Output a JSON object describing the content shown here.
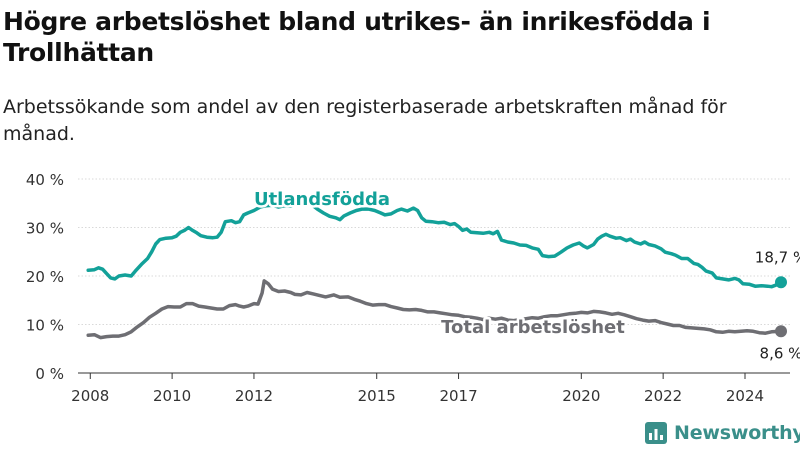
{
  "title": "Högre arbetslöshet bland utrikes- än inrikesfödda i Trollhättan",
  "subtitle": "Arbetssökande som andel av den registerbaserade arbetskraften månad för månad.",
  "brand": {
    "name": "Newsworthy",
    "icon": "newsworthy-logo-icon",
    "color": "#3a8f8a"
  },
  "chart_data": {
    "type": "line",
    "xlim": [
      2007.7,
      2025.1
    ],
    "ylim": [
      0,
      40
    ],
    "x_ticks": [
      {
        "value": 2008,
        "label": "2008"
      },
      {
        "value": 2010,
        "label": "2010"
      },
      {
        "value": 2012,
        "label": "2012"
      },
      {
        "value": 2015,
        "label": "2015"
      },
      {
        "value": 2017,
        "label": "2017"
      },
      {
        "value": 2020,
        "label": "2020"
      },
      {
        "value": 2022,
        "label": "2022"
      },
      {
        "value": 2024,
        "label": "2024"
      }
    ],
    "y_ticks": [
      {
        "value": 0,
        "label": "0 %"
      },
      {
        "value": 10,
        "label": "10 %"
      },
      {
        "value": 20,
        "label": "20 %"
      },
      {
        "value": 30,
        "label": "30 %"
      },
      {
        "value": 40,
        "label": "40 %"
      }
    ],
    "grid": true,
    "series": [
      {
        "name": "Utlandsfödda",
        "color": "#13a199",
        "end_label": "18,7 %",
        "points": [
          [
            2007.95,
            21.2
          ],
          [
            2008.1,
            21.3
          ],
          [
            2008.2,
            21.7
          ],
          [
            2008.3,
            21.4
          ],
          [
            2008.4,
            20.5
          ],
          [
            2008.5,
            19.6
          ],
          [
            2008.6,
            19.4
          ],
          [
            2008.7,
            20.0
          ],
          [
            2008.85,
            20.2
          ],
          [
            2009.0,
            20.0
          ],
          [
            2009.1,
            21.0
          ],
          [
            2009.25,
            22.4
          ],
          [
            2009.4,
            23.6
          ],
          [
            2009.5,
            25.0
          ],
          [
            2009.6,
            26.6
          ],
          [
            2009.7,
            27.5
          ],
          [
            2009.85,
            27.8
          ],
          [
            2010.0,
            27.9
          ],
          [
            2010.1,
            28.2
          ],
          [
            2010.2,
            29.0
          ],
          [
            2010.3,
            29.4
          ],
          [
            2010.4,
            30.0
          ],
          [
            2010.5,
            29.4
          ],
          [
            2010.6,
            28.9
          ],
          [
            2010.7,
            28.3
          ],
          [
            2010.85,
            28.0
          ],
          [
            2011.0,
            27.9
          ],
          [
            2011.1,
            28.0
          ],
          [
            2011.2,
            29.0
          ],
          [
            2011.3,
            31.2
          ],
          [
            2011.45,
            31.4
          ],
          [
            2011.55,
            31.0
          ],
          [
            2011.65,
            31.2
          ],
          [
            2011.75,
            32.6
          ],
          [
            2011.85,
            33.0
          ],
          [
            2012.0,
            33.5
          ],
          [
            2012.15,
            34.2
          ],
          [
            2012.3,
            34.5
          ],
          [
            2012.45,
            34.6
          ],
          [
            2012.6,
            34.2
          ],
          [
            2012.75,
            34.5
          ],
          [
            2012.9,
            34.4
          ],
          [
            2013.1,
            34.9
          ],
          [
            2013.25,
            35.2
          ],
          [
            2013.4,
            34.8
          ],
          [
            2013.55,
            33.8
          ],
          [
            2013.7,
            33.0
          ],
          [
            2013.85,
            32.3
          ],
          [
            2014.0,
            32.0
          ],
          [
            2014.1,
            31.6
          ],
          [
            2014.2,
            32.4
          ],
          [
            2014.35,
            33.0
          ],
          [
            2014.5,
            33.5
          ],
          [
            2014.65,
            33.8
          ],
          [
            2014.8,
            33.8
          ],
          [
            2014.95,
            33.5
          ],
          [
            2015.1,
            33.0
          ],
          [
            2015.2,
            32.6
          ],
          [
            2015.35,
            32.8
          ],
          [
            2015.5,
            33.5
          ],
          [
            2015.6,
            33.8
          ],
          [
            2015.75,
            33.4
          ],
          [
            2015.9,
            34.0
          ],
          [
            2016.0,
            33.5
          ],
          [
            2016.1,
            32.0
          ],
          [
            2016.2,
            31.3
          ],
          [
            2016.35,
            31.2
          ],
          [
            2016.5,
            31.0
          ],
          [
            2016.65,
            31.1
          ],
          [
            2016.8,
            30.6
          ],
          [
            2016.9,
            30.8
          ],
          [
            2017.0,
            30.2
          ],
          [
            2017.1,
            29.4
          ],
          [
            2017.2,
            29.7
          ],
          [
            2017.3,
            29.0
          ],
          [
            2017.45,
            28.9
          ],
          [
            2017.6,
            28.8
          ],
          [
            2017.75,
            29.0
          ],
          [
            2017.85,
            28.7
          ],
          [
            2017.95,
            29.2
          ],
          [
            2018.05,
            27.4
          ],
          [
            2018.2,
            27.0
          ],
          [
            2018.35,
            26.8
          ],
          [
            2018.5,
            26.4
          ],
          [
            2018.65,
            26.3
          ],
          [
            2018.8,
            25.8
          ],
          [
            2018.95,
            25.5
          ],
          [
            2019.05,
            24.2
          ],
          [
            2019.2,
            24.0
          ],
          [
            2019.35,
            24.1
          ],
          [
            2019.5,
            24.9
          ],
          [
            2019.65,
            25.8
          ],
          [
            2019.8,
            26.4
          ],
          [
            2019.95,
            26.8
          ],
          [
            2020.05,
            26.2
          ],
          [
            2020.15,
            25.8
          ],
          [
            2020.3,
            26.5
          ],
          [
            2020.4,
            27.6
          ],
          [
            2020.5,
            28.2
          ],
          [
            2020.6,
            28.6
          ],
          [
            2020.7,
            28.2
          ],
          [
            2020.85,
            27.8
          ],
          [
            2020.95,
            27.9
          ],
          [
            2021.1,
            27.3
          ],
          [
            2021.2,
            27.6
          ],
          [
            2021.3,
            27.0
          ],
          [
            2021.45,
            26.6
          ],
          [
            2021.55,
            27.0
          ],
          [
            2021.65,
            26.5
          ],
          [
            2021.8,
            26.2
          ],
          [
            2021.95,
            25.6
          ],
          [
            2022.05,
            24.9
          ],
          [
            2022.2,
            24.6
          ],
          [
            2022.3,
            24.3
          ],
          [
            2022.45,
            23.6
          ],
          [
            2022.6,
            23.6
          ],
          [
            2022.75,
            22.6
          ],
          [
            2022.85,
            22.4
          ],
          [
            2022.95,
            21.8
          ],
          [
            2023.05,
            21.0
          ],
          [
            2023.2,
            20.6
          ],
          [
            2023.3,
            19.6
          ],
          [
            2023.45,
            19.4
          ],
          [
            2023.6,
            19.2
          ],
          [
            2023.75,
            19.5
          ],
          [
            2023.85,
            19.2
          ],
          [
            2023.95,
            18.4
          ],
          [
            2024.1,
            18.3
          ],
          [
            2024.25,
            17.9
          ],
          [
            2024.4,
            18.0
          ],
          [
            2024.55,
            17.9
          ],
          [
            2024.65,
            17.8
          ],
          [
            2024.75,
            18.1
          ],
          [
            2024.88,
            18.7
          ]
        ]
      },
      {
        "name": "Total arbetslöshet",
        "color": "#6e6e73",
        "end_label": "8,6 %",
        "points": [
          [
            2007.95,
            7.8
          ],
          [
            2008.1,
            7.9
          ],
          [
            2008.25,
            7.3
          ],
          [
            2008.4,
            7.5
          ],
          [
            2008.55,
            7.6
          ],
          [
            2008.7,
            7.6
          ],
          [
            2008.85,
            7.9
          ],
          [
            2009.0,
            8.5
          ],
          [
            2009.15,
            9.5
          ],
          [
            2009.3,
            10.4
          ],
          [
            2009.45,
            11.5
          ],
          [
            2009.6,
            12.3
          ],
          [
            2009.75,
            13.2
          ],
          [
            2009.9,
            13.7
          ],
          [
            2010.05,
            13.6
          ],
          [
            2010.2,
            13.6
          ],
          [
            2010.35,
            14.3
          ],
          [
            2010.5,
            14.3
          ],
          [
            2010.65,
            13.8
          ],
          [
            2010.8,
            13.6
          ],
          [
            2010.95,
            13.4
          ],
          [
            2011.1,
            13.2
          ],
          [
            2011.25,
            13.2
          ],
          [
            2011.4,
            13.9
          ],
          [
            2011.55,
            14.1
          ],
          [
            2011.65,
            13.8
          ],
          [
            2011.75,
            13.6
          ],
          [
            2011.85,
            13.8
          ],
          [
            2012.0,
            14.3
          ],
          [
            2012.1,
            14.2
          ],
          [
            2012.2,
            16.5
          ],
          [
            2012.25,
            19.0
          ],
          [
            2012.35,
            18.4
          ],
          [
            2012.45,
            17.3
          ],
          [
            2012.6,
            16.8
          ],
          [
            2012.75,
            16.9
          ],
          [
            2012.9,
            16.6
          ],
          [
            2013.0,
            16.2
          ],
          [
            2013.15,
            16.1
          ],
          [
            2013.3,
            16.6
          ],
          [
            2013.45,
            16.3
          ],
          [
            2013.6,
            16.0
          ],
          [
            2013.75,
            15.7
          ],
          [
            2013.85,
            15.9
          ],
          [
            2013.95,
            16.1
          ],
          [
            2014.1,
            15.6
          ],
          [
            2014.3,
            15.7
          ],
          [
            2014.45,
            15.2
          ],
          [
            2014.6,
            14.8
          ],
          [
            2014.75,
            14.3
          ],
          [
            2014.9,
            14.0
          ],
          [
            2015.05,
            14.1
          ],
          [
            2015.2,
            14.1
          ],
          [
            2015.35,
            13.7
          ],
          [
            2015.5,
            13.4
          ],
          [
            2015.65,
            13.1
          ],
          [
            2015.8,
            13.0
          ],
          [
            2015.95,
            13.1
          ],
          [
            2016.1,
            12.9
          ],
          [
            2016.25,
            12.6
          ],
          [
            2016.4,
            12.6
          ],
          [
            2016.55,
            12.4
          ],
          [
            2016.7,
            12.2
          ],
          [
            2016.85,
            12.0
          ],
          [
            2017.0,
            11.9
          ],
          [
            2017.15,
            11.6
          ],
          [
            2017.3,
            11.5
          ],
          [
            2017.45,
            11.3
          ],
          [
            2017.6,
            11.0
          ],
          [
            2017.75,
            11.3
          ],
          [
            2017.9,
            11.1
          ],
          [
            2018.05,
            11.3
          ],
          [
            2018.2,
            10.9
          ],
          [
            2018.35,
            10.8
          ],
          [
            2018.5,
            11.0
          ],
          [
            2018.65,
            11.2
          ],
          [
            2018.8,
            11.4
          ],
          [
            2018.95,
            11.3
          ],
          [
            2019.1,
            11.6
          ],
          [
            2019.25,
            11.8
          ],
          [
            2019.4,
            11.8
          ],
          [
            2019.55,
            12.0
          ],
          [
            2019.7,
            12.2
          ],
          [
            2019.85,
            12.3
          ],
          [
            2020.0,
            12.5
          ],
          [
            2020.15,
            12.4
          ],
          [
            2020.3,
            12.7
          ],
          [
            2020.45,
            12.6
          ],
          [
            2020.6,
            12.4
          ],
          [
            2020.75,
            12.1
          ],
          [
            2020.9,
            12.3
          ],
          [
            2021.05,
            12.0
          ],
          [
            2021.2,
            11.6
          ],
          [
            2021.35,
            11.2
          ],
          [
            2021.5,
            10.9
          ],
          [
            2021.65,
            10.7
          ],
          [
            2021.8,
            10.8
          ],
          [
            2021.95,
            10.4
          ],
          [
            2022.1,
            10.1
          ],
          [
            2022.25,
            9.8
          ],
          [
            2022.4,
            9.8
          ],
          [
            2022.55,
            9.4
          ],
          [
            2022.7,
            9.3
          ],
          [
            2022.85,
            9.2
          ],
          [
            2023.0,
            9.1
          ],
          [
            2023.15,
            8.9
          ],
          [
            2023.3,
            8.5
          ],
          [
            2023.45,
            8.4
          ],
          [
            2023.6,
            8.6
          ],
          [
            2023.75,
            8.5
          ],
          [
            2023.9,
            8.6
          ],
          [
            2024.05,
            8.7
          ],
          [
            2024.2,
            8.6
          ],
          [
            2024.35,
            8.3
          ],
          [
            2024.5,
            8.2
          ],
          [
            2024.65,
            8.5
          ],
          [
            2024.88,
            8.6
          ]
        ]
      }
    ]
  }
}
